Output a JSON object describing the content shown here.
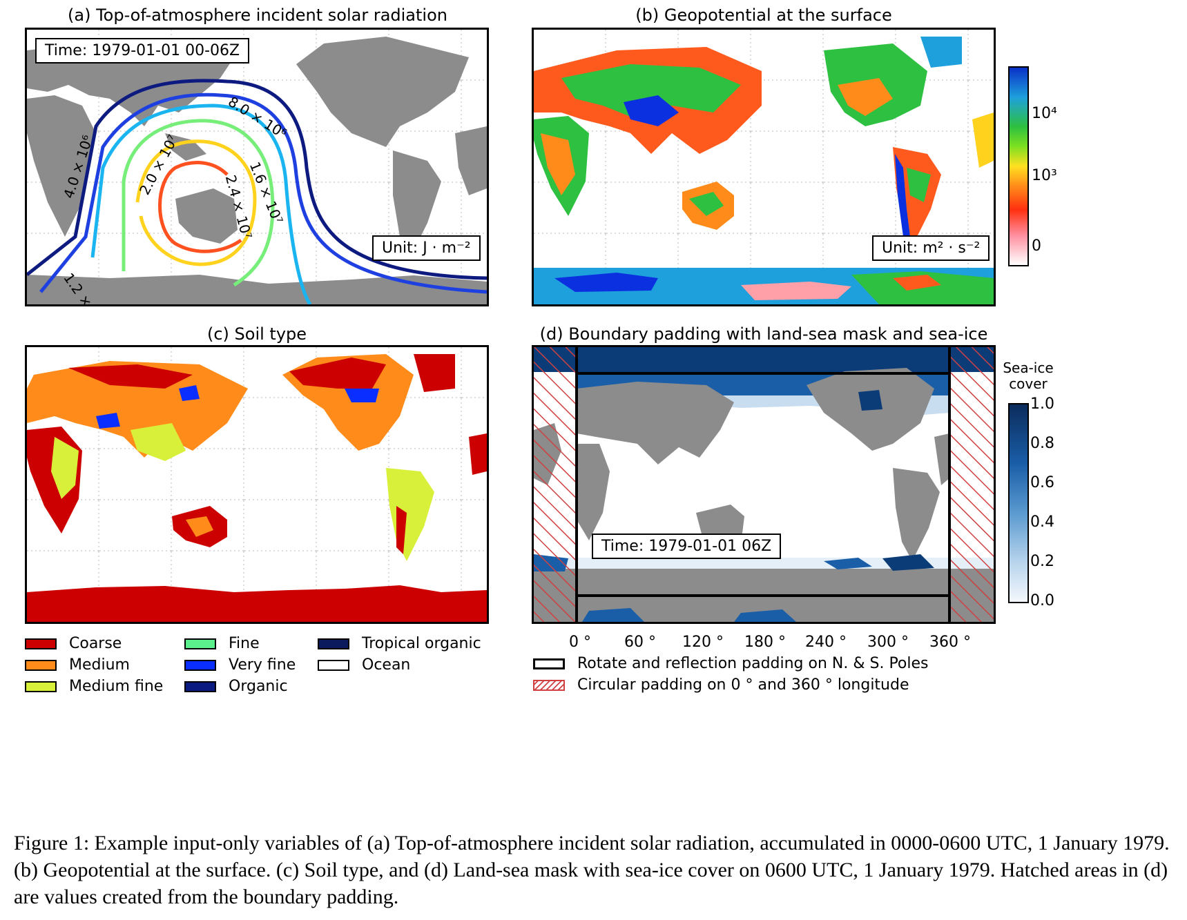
{
  "panels": {
    "a": {
      "title": "(a) Top-of-atmosphere incident solar radiation",
      "time_box": "Time: 1979-01-01 00-06Z",
      "unit_box": "Unit: J · m⁻²",
      "contour_labels": [
        "8.0 × 10⁶",
        "4.0 × 10⁶",
        "2.0 × 10⁷",
        "1.6 × 10⁷",
        "2.4 × 10⁷",
        "1.2 ×"
      ]
    },
    "b": {
      "title": "(b) Geopotential at the surface",
      "unit_box": "Unit: m² · s⁻²",
      "colorbar_ticks": [
        "10⁴",
        "10³",
        "0"
      ]
    },
    "c": {
      "title": "(c) Soil type",
      "legend": [
        {
          "label": "Coarse",
          "color": "#cc0000"
        },
        {
          "label": "Medium",
          "color": "#ff8c1a"
        },
        {
          "label": "Medium fine",
          "color": "#d9f03a"
        },
        {
          "label": "Fine",
          "color": "#5cf08c"
        },
        {
          "label": "Very fine",
          "color": "#0a2eff"
        },
        {
          "label": "Organic",
          "color": "#0a1a80"
        },
        {
          "label": "Tropical organic",
          "color": "#0b1a5c"
        },
        {
          "label": "Ocean",
          "color": "#ffffff"
        }
      ]
    },
    "d": {
      "title": "(d) Boundary padding with land-sea mask and sea-ice",
      "time_box": "Time: 1979-01-01 06Z",
      "colorbar_title": "Sea-ice cover",
      "colorbar_ticks": [
        "1.0",
        "0.8",
        "0.6",
        "0.4",
        "0.2",
        "0.0"
      ],
      "x_ticks": [
        "0 °",
        "60 °",
        "120 °",
        "180 °",
        "240 °",
        "300 °",
        "360 °"
      ],
      "legend": [
        {
          "label": "Rotate and reflection padding on N. & S. Poles"
        },
        {
          "label": "Circular padding on 0 ° and 360 ° longitude"
        }
      ]
    }
  },
  "caption": {
    "text": "Figure 1: Example input-only variables of (a) Top-of-atmosphere incident solar radiation, accumulated in 0000-0600 UTC, 1 January 1979. (b) Geopotential at the surface. (c) Soil type, and (d) Land-sea mask with sea-ice cover on 0600 UTC, 1 January 1979. Hatched areas in (d) are values created from the boundary padding."
  },
  "colors": {
    "land_gray": "#8c8c8c",
    "hatch": "#d04040",
    "ice_dark": "#0b3c78"
  }
}
